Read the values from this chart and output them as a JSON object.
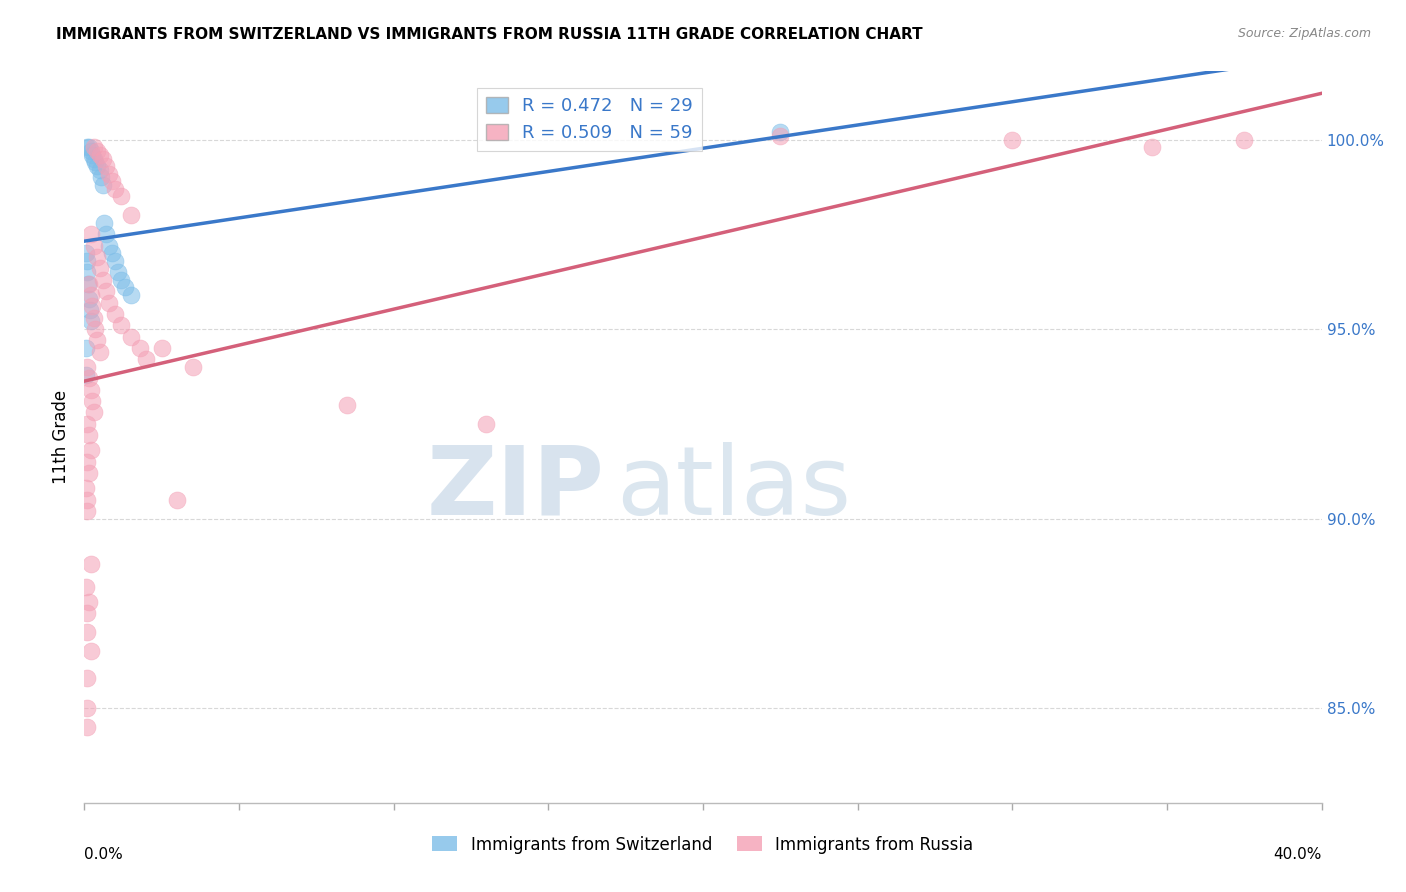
{
  "title": "IMMIGRANTS FROM SWITZERLAND VS IMMIGRANTS FROM RUSSIA 11TH GRADE CORRELATION CHART",
  "source": "Source: ZipAtlas.com",
  "ylabel": "11th Grade",
  "y_ticks": [
    85.0,
    90.0,
    95.0,
    100.0
  ],
  "y_tick_labels": [
    "85.0%",
    "90.0%",
    "95.0%",
    "100.0%"
  ],
  "xlim": [
    0.0,
    40.0
  ],
  "ylim": [
    82.5,
    101.8
  ],
  "swiss_color": "#7dbde8",
  "russia_color": "#f4a0b5",
  "swiss_line_color": "#3a78c9",
  "russia_line_color": "#d4607a",
  "background_color": "#ffffff",
  "swiss_points_x": [
    0.1,
    0.15,
    0.2,
    0.25,
    0.3,
    0.35,
    0.4,
    0.5,
    0.55,
    0.6,
    0.65,
    0.7,
    0.8,
    0.9,
    1.0,
    1.1,
    1.2,
    1.3,
    1.5,
    0.05,
    0.08,
    0.1,
    0.12,
    0.15,
    0.18,
    0.22,
    0.05,
    0.05,
    22.5
  ],
  "swiss_points_y": [
    99.8,
    99.8,
    99.7,
    99.6,
    99.5,
    99.4,
    99.3,
    99.2,
    99.0,
    98.8,
    97.8,
    97.5,
    97.2,
    97.0,
    96.8,
    96.5,
    96.3,
    96.1,
    95.9,
    97.0,
    96.8,
    96.5,
    96.2,
    95.8,
    95.5,
    95.2,
    94.5,
    93.8,
    100.2
  ],
  "russia_points_x": [
    0.3,
    0.4,
    0.5,
    0.6,
    0.7,
    0.8,
    0.9,
    1.0,
    1.2,
    1.5,
    0.2,
    0.3,
    0.4,
    0.5,
    0.6,
    0.7,
    0.8,
    1.0,
    1.2,
    1.5,
    1.8,
    2.0,
    0.15,
    0.2,
    0.25,
    0.3,
    0.35,
    0.4,
    0.5,
    0.1,
    0.15,
    0.2,
    0.25,
    0.3,
    0.1,
    0.15,
    0.2,
    0.1,
    0.15,
    0.05,
    0.1,
    0.1,
    0.2,
    0.05,
    0.15,
    0.1,
    0.1,
    0.2,
    0.1,
    0.1,
    0.1,
    3.5,
    8.5,
    13.0,
    22.5,
    30.0,
    34.5,
    37.5,
    2.5,
    3.0
  ],
  "russia_points_y": [
    99.8,
    99.7,
    99.6,
    99.5,
    99.3,
    99.1,
    98.9,
    98.7,
    98.5,
    98.0,
    97.5,
    97.2,
    96.9,
    96.6,
    96.3,
    96.0,
    95.7,
    95.4,
    95.1,
    94.8,
    94.5,
    94.2,
    96.2,
    95.9,
    95.6,
    95.3,
    95.0,
    94.7,
    94.4,
    94.0,
    93.7,
    93.4,
    93.1,
    92.8,
    92.5,
    92.2,
    91.8,
    91.5,
    91.2,
    90.8,
    90.5,
    90.2,
    88.8,
    88.2,
    87.8,
    87.5,
    87.0,
    86.5,
    85.8,
    85.0,
    84.5,
    94.0,
    93.0,
    92.5,
    100.1,
    100.0,
    99.8,
    100.0,
    94.5,
    90.5
  ]
}
